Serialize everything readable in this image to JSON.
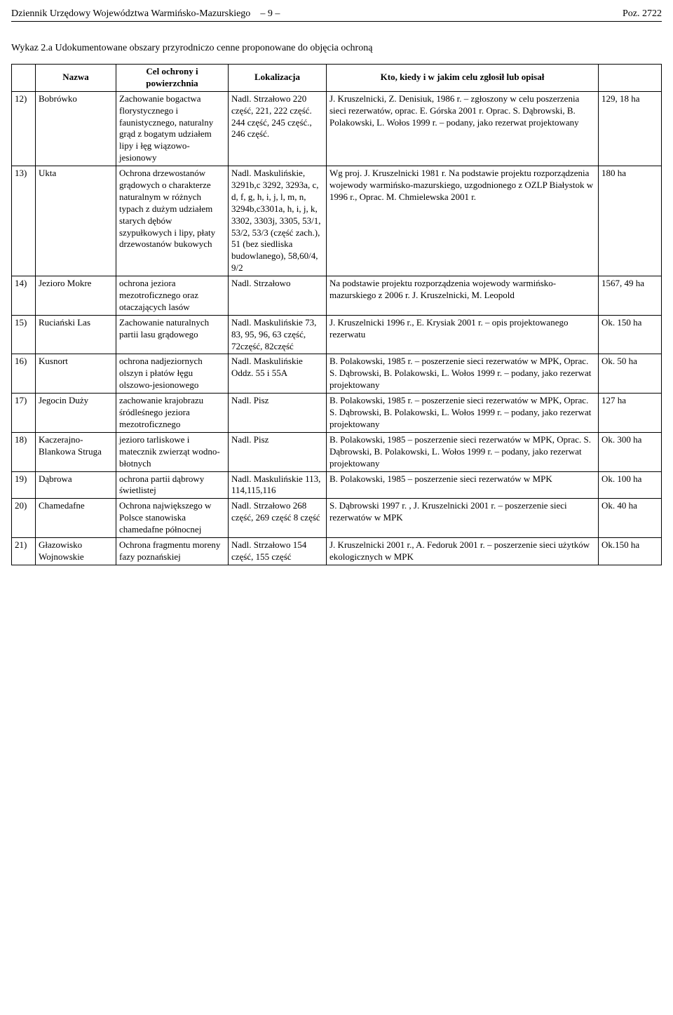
{
  "header": {
    "publication": "Dziennik Urzędowy Województwa Warmińsko-Mazurskiego",
    "page_sep_left": "–",
    "page_num": "9",
    "page_sep_right": "–",
    "poz": "Poz. 2722"
  },
  "section_title": "Wykaz 2.a   Udokumentowane obszary przyrodniczo cenne proponowane do objęcia ochroną",
  "columns": {
    "num": "",
    "name": "Nazwa",
    "cel": "Cel ochrony i powierzchnia",
    "lok": "Lokalizacja",
    "kto": "Kto, kiedy i w jakim celu zgłosił lub opisał",
    "area": ""
  },
  "rows": [
    {
      "num": "12)",
      "name": "Bobrówko",
      "cel": "Zachowanie bogactwa florystycznego i faunistycznego, naturalny grąd z bogatym udziałem lipy i łęg wiązowo-jesionowy",
      "lok": "Nadl. Strzałowo 220 część, 221, 222 część. 244 część, 245 część., 246 część.",
      "kto": "J. Kruszelnicki, Z. Denisiuk, 1986 r. – zgłoszony w celu poszerzenia sieci rezerwatów, oprac. E. Górska 2001 r. Oprac. S. Dąbrowski, B. Polakowski, L. Wołos 1999 r. – podany, jako rezerwat projektowany",
      "area": "129, 18 ha"
    },
    {
      "num": "13)",
      "name": "Ukta",
      "cel": "Ochrona drzewostanów grądowych o charakterze naturalnym w różnych typach z dużym udziałem starych dębów szypułkowych i lipy, płaty drzewostanów bukowych",
      "lok": "Nadl. Maskulińskie, 3291b,c 3292, 3293a, c, d, f, g, h, i, j, l, m, n, 3294b,c3301a, h, i, j, k, 3302, 3303j, 3305, 53/1, 53/2, 53/3 (część zach.), 51 (bez siedliska budowlanego), 58,60/4, 9/2",
      "kto": "Wg proj. J. Kruszelnicki 1981 r. Na podstawie projektu rozporządzenia wojewody warmińsko-mazurskiego, uzgodnionego z OZLP Białystok w 1996 r., Oprac. M. Chmielewska 2001 r.",
      "area": "180 ha"
    },
    {
      "num": "14)",
      "name": "Jezioro Mokre",
      "cel": "ochrona jeziora mezotroficznego oraz otaczających lasów",
      "lok": "Nadl. Strzałowo",
      "kto": "Na podstawie projektu rozporządzenia wojewody warmińsko-mazurskiego z 2006 r. J. Kruszelnicki, M. Leopold",
      "area": "1567, 49 ha"
    },
    {
      "num": "15)",
      "name": "Ruciański Las",
      "cel": "Zachowanie naturalnych partii lasu grądowego",
      "lok": "Nadl. Maskulińskie 73, 83, 95, 96, 63 część, 72część, 82część",
      "kto": "J. Kruszelnicki 1996 r., E. Krysiak 2001 r. – opis projektowanego rezerwatu",
      "area": "Ok. 150 ha"
    },
    {
      "num": "16)",
      "name": "Kusnort",
      "cel": "ochrona nadjeziornych olszyn i płatów łęgu olszowo-jesionowego",
      "lok": "Nadl. Maskulińskie Oddz. 55 i 55A",
      "kto": "B. Polakowski, 1985 r. – poszerzenie sieci rezerwatów w MPK, Oprac. S. Dąbrowski, B. Polakowski, L. Wołos 1999 r. – podany, jako rezerwat projektowany",
      "area": "Ok. 50 ha"
    },
    {
      "num": "17)",
      "name": "Jegocin Duży",
      "cel": "zachowanie krajobrazu śródleśnego jeziora mezotroficznego",
      "lok": "Nadl. Pisz",
      "kto": "B. Polakowski, 1985 r. – poszerzenie sieci rezerwatów w MPK, Oprac. S. Dąbrowski, B. Polakowski, L. Wołos 1999 r. – podany, jako rezerwat projektowany",
      "area": "127 ha"
    },
    {
      "num": "18)",
      "name": "Kaczerajno-Blankowa Struga",
      "cel": "jezioro tarliskowe i matecznik zwierząt wodno-błotnych",
      "lok": "Nadl. Pisz",
      "kto": "B. Polakowski, 1985 – poszerzenie sieci rezerwatów w MPK, Oprac. S. Dąbrowski, B. Polakowski, L. Wołos 1999 r. – podany, jako rezerwat projektowany",
      "area": "Ok. 300 ha"
    },
    {
      "num": "19)",
      "name": "Dąbrowa",
      "cel": "ochrona partii dąbrowy świetlistej",
      "lok": "Nadl. Maskulińskie 113, 114,115,116",
      "kto": "B. Polakowski, 1985 – poszerzenie sieci rezerwatów w MPK",
      "area": "Ok. 100 ha"
    },
    {
      "num": "20)",
      "name": "Chamedafne",
      "cel": "Ochrona największego w Polsce stanowiska chamedafne północnej",
      "lok": "Nadl. Strzałowo 268 część, 269 część 8 część",
      "kto": "S. Dąbrowski 1997 r. , J. Kruszelnicki 2001 r. – poszerzenie sieci rezerwatów w MPK",
      "area": "Ok. 40 ha"
    },
    {
      "num": "21)",
      "name": "Głazowisko Wojnowskie",
      "cel": "Ochrona fragmentu moreny fazy poznańskiej",
      "lok": "Nadl. Strzałowo 154 część, 155 część",
      "kto": "J. Kruszelnicki 2001 r., A. Fedoruk 2001 r. – poszerzenie sieci użytków ekologicznych w MPK",
      "area": "Ok.150 ha"
    }
  ]
}
